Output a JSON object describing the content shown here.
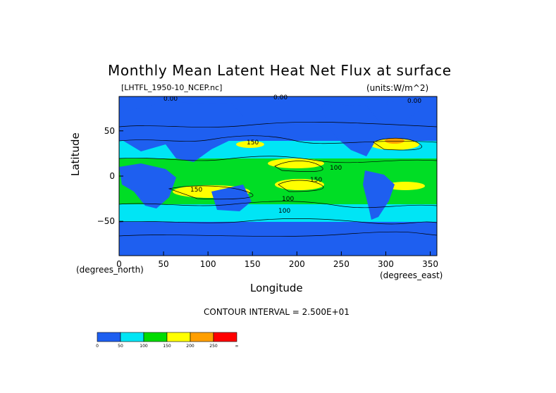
{
  "chart_data": {
    "type": "heatmap",
    "title": "Monthly Mean Latent Heat Net Flux at surface",
    "subtitle_left": "[LHTFL_1950-10_NCEP.nc]",
    "subtitle_right": "(units:W/m^2)",
    "xlabel": "Longitude",
    "ylabel": "Latitude",
    "x_units_label": "(degrees_east)",
    "y_units_label": "(degrees_north)",
    "xlim": [
      0,
      357.5
    ],
    "ylim": [
      -88,
      88
    ],
    "xticks": [
      "0",
      "50",
      "100",
      "150",
      "200",
      "250",
      "300",
      "350"
    ],
    "yticks": [
      "50",
      "0",
      "−50"
    ],
    "footer": "CONTOUR INTERVAL = 2.500E+01",
    "colorbar": {
      "levels": [
        "0",
        "50",
        "100",
        "150",
        "200",
        "250",
        "∞"
      ],
      "colors": [
        "#1e5ff0",
        "#00e5f5",
        "#00dc00",
        "#ffff00",
        "#ff9f00",
        "#ff0000"
      ]
    },
    "contour_labels": [
      "0.00",
      "0.00",
      "0.00",
      "100",
      "100",
      "150",
      "150",
      "150",
      "100"
    ]
  }
}
